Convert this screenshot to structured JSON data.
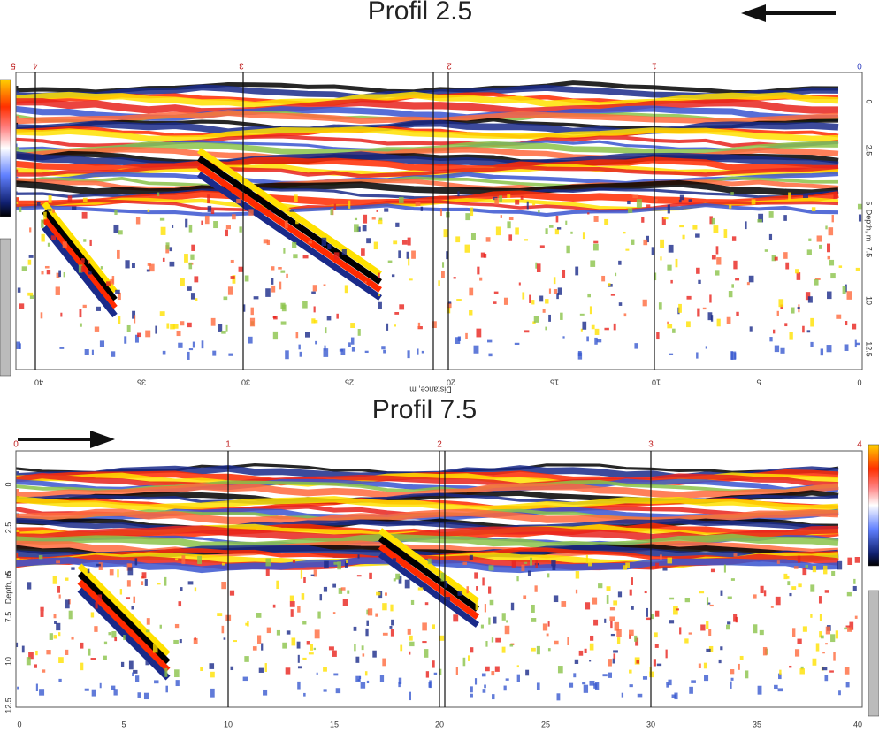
{
  "panels": [
    {
      "title": "Profil 2.5",
      "markers": [
        "5",
        "4",
        "3",
        "2",
        "1",
        "0"
      ],
      "depth_ticks": [
        "0",
        "2.5",
        "5",
        "7.5",
        "10",
        "12.5"
      ],
      "distance_ticks": [
        "40",
        "35",
        "30",
        "25",
        "20",
        "15",
        "10",
        "5",
        "0"
      ],
      "distance_label": "Distance, m",
      "depth_label": "Depth, m"
    },
    {
      "title": "Profil 7.5",
      "markers": [
        "0",
        "1",
        "2",
        "3",
        "4"
      ],
      "depth_ticks": [
        "0",
        "2.5",
        "5",
        "7.5",
        "10",
        "12.5"
      ],
      "distance_ticks": [
        "0",
        "5",
        "10",
        "15",
        "20",
        "25",
        "30",
        "35",
        "40"
      ],
      "depth_label": "Depth, m"
    }
  ]
}
